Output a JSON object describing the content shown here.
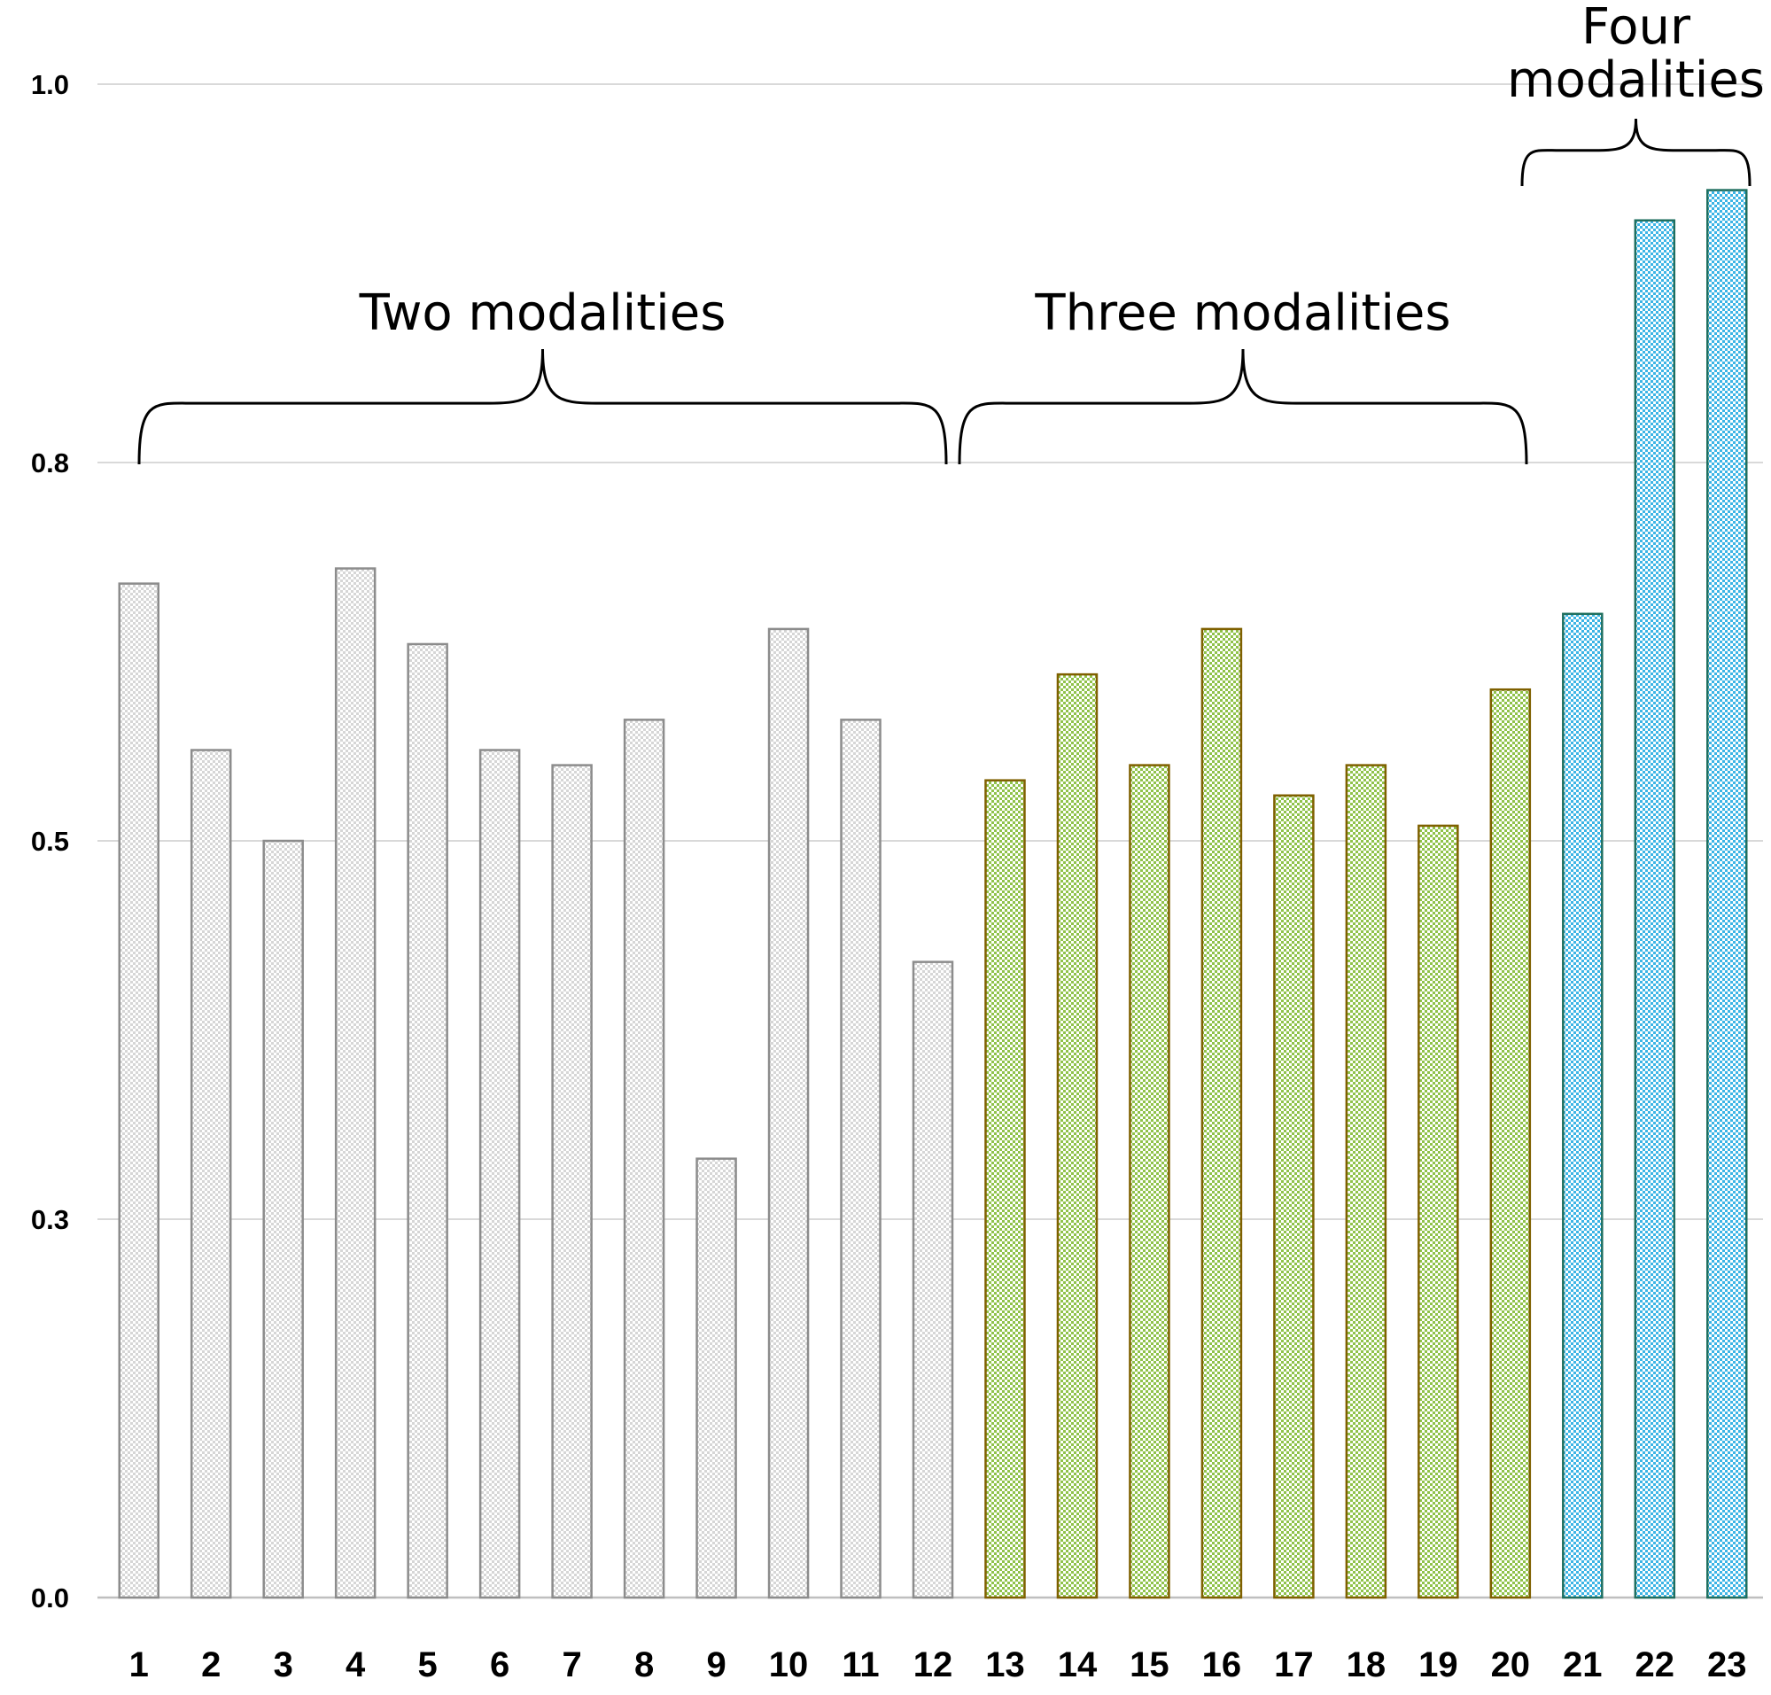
{
  "chart_data": {
    "type": "bar",
    "title": "",
    "xlabel": "",
    "ylabel": "",
    "ylim": [
      0,
      1.0
    ],
    "y_ticks": [
      {
        "value": 0.0,
        "label": "0.0"
      },
      {
        "value": 0.25,
        "label": "0.3"
      },
      {
        "value": 0.5,
        "label": "0.5"
      },
      {
        "value": 0.75,
        "label": "0.8"
      },
      {
        "value": 1.0,
        "label": "1.0"
      }
    ],
    "grid": true,
    "categories": [
      "1",
      "2",
      "3",
      "4",
      "5",
      "6",
      "7",
      "8",
      "9",
      "10",
      "11",
      "12",
      "13",
      "14",
      "15",
      "16",
      "17",
      "18",
      "19",
      "20",
      "21",
      "22",
      "23"
    ],
    "values": [
      0.67,
      0.56,
      0.5,
      0.68,
      0.63,
      0.56,
      0.55,
      0.58,
      0.29,
      0.64,
      0.58,
      0.42,
      0.54,
      0.61,
      0.55,
      0.64,
      0.53,
      0.55,
      0.51,
      0.6,
      0.65,
      0.91,
      0.93
    ],
    "groups": [
      {
        "name": "Two modalities",
        "label_lines": [
          "Two modalities"
        ],
        "from": 1,
        "to": 12,
        "color": "#8c8c8c",
        "fill": "#d6d6d6"
      },
      {
        "name": "Three modalities",
        "label_lines": [
          "Three modalities"
        ],
        "from": 13,
        "to": 20,
        "color": "#7f6000",
        "fill": "#8fc24a"
      },
      {
        "name": "Four modalities",
        "label_lines": [
          "Four",
          "modalities"
        ],
        "from": 21,
        "to": 23,
        "color": "#1f6f5f",
        "fill": "#3cb4e5"
      }
    ]
  }
}
